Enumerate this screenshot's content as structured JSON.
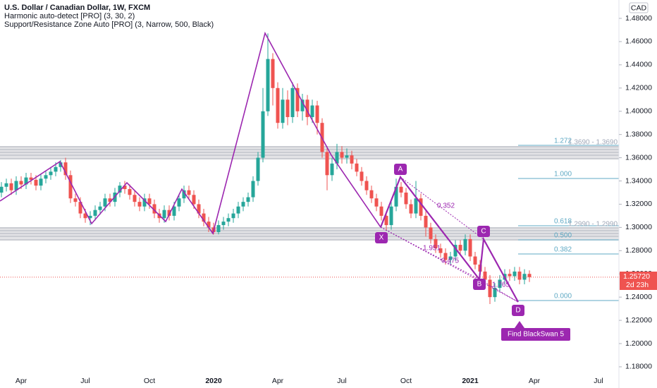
{
  "chart_data": {
    "type": "candlestick",
    "title": "U.S. Dollar / Canadian Dollar, 1W, FXCM",
    "indicators": [
      "Harmonic auto-detect [PRO] (3, 30, 2)",
      "Support/Resistance Zone Auto [PRO] (3, Narrow, 500, Black)"
    ],
    "currency": "CAD",
    "last_price_label": "1.25720",
    "countdown": "2d 23h",
    "pattern_points": [
      "X",
      "A",
      "B",
      "C",
      "D"
    ],
    "pattern_ratios": [
      "0.352",
      "1.951",
      "0.475",
      "1.765"
    ],
    "fib_levels": [
      "1.272",
      "1.000",
      "0.618",
      "0.500",
      "0.382",
      "0.000"
    ],
    "zone_labels": [
      "1.3690 - 1.3690",
      "1.2990 - 1.2990"
    ],
    "button": "Find BlackSwan 5",
    "up_color": "#26a69a",
    "down_color": "#ef5350",
    "grid": false,
    "ylim": [
      1.1739,
      1.4958
    ],
    "yticks": [
      {
        "value": 1.18,
        "label": "1.18000"
      },
      {
        "value": 1.2,
        "label": "1.20000"
      },
      {
        "value": 1.22,
        "label": "1.22000"
      },
      {
        "value": 1.24,
        "label": "1.24000"
      },
      {
        "value": 1.26,
        "label": "1.26000"
      },
      {
        "value": 1.28,
        "label": "1.28000"
      },
      {
        "value": 1.3,
        "label": "1.30000"
      },
      {
        "value": 1.32,
        "label": "1.32000"
      },
      {
        "value": 1.34,
        "label": "1.34000"
      },
      {
        "value": 1.36,
        "label": "1.36000"
      },
      {
        "value": 1.38,
        "label": "1.38000"
      },
      {
        "value": 1.4,
        "label": "1.40000"
      },
      {
        "value": 1.42,
        "label": "1.42000"
      },
      {
        "value": 1.44,
        "label": "1.44000"
      },
      {
        "value": 1.46,
        "label": "1.46000"
      },
      {
        "value": 1.48,
        "label": "1.48000"
      }
    ],
    "categories": [
      null,
      null,
      null,
      null,
      "Apr",
      null,
      null,
      null,
      null,
      null,
      null,
      null,
      null,
      null,
      null,
      null,
      null,
      "Jul",
      null,
      null,
      null,
      null,
      null,
      null,
      null,
      null,
      null,
      null,
      null,
      null,
      "Oct",
      null,
      null,
      null,
      null,
      null,
      null,
      null,
      null,
      null,
      null,
      null,
      null,
      "2020",
      null,
      null,
      null,
      null,
      null,
      null,
      null,
      null,
      null,
      null,
      null,
      null,
      "Apr",
      null,
      null,
      null,
      null,
      null,
      null,
      null,
      null,
      null,
      null,
      null,
      null,
      "Jul",
      null,
      null,
      null,
      null,
      null,
      null,
      null,
      null,
      null,
      null,
      null,
      null,
      "Oct",
      null,
      null,
      null,
      null,
      null,
      null,
      null,
      null,
      null,
      null,
      null,
      null,
      "2021",
      null,
      null,
      null,
      null,
      null,
      null,
      null,
      null,
      null,
      null,
      null,
      null,
      "Apr",
      null,
      null,
      null,
      null,
      null,
      null,
      null,
      null,
      null,
      null,
      null,
      null,
      "Jul",
      null
    ],
    "open": [
      1.33,
      1.335,
      1.338,
      1.332,
      1.34,
      1.337,
      1.343,
      1.341,
      1.336,
      1.342,
      1.345,
      1.348,
      1.352,
      1.356,
      1.345,
      1.325,
      1.322,
      1.312,
      1.308,
      1.31,
      1.315,
      1.318,
      1.325,
      1.322,
      1.33,
      1.336,
      1.333,
      1.328,
      1.322,
      1.318,
      1.325,
      1.32,
      1.312,
      1.308,
      1.315,
      1.31,
      1.318,
      1.325,
      1.332,
      1.328,
      1.32,
      1.312,
      1.305,
      1.3,
      1.296,
      1.302,
      1.305,
      1.308,
      1.312,
      1.318,
      1.322,
      1.326,
      1.34,
      1.36,
      1.4,
      1.445,
      1.42,
      1.39,
      1.41,
      1.395,
      1.42,
      1.4,
      1.41,
      1.395,
      1.405,
      1.39,
      1.365,
      1.345,
      1.355,
      1.365,
      1.36,
      1.362,
      1.355,
      1.348,
      1.34,
      1.332,
      1.325,
      1.318,
      1.31,
      1.302,
      1.318,
      1.335,
      1.33,
      1.32,
      1.312,
      1.325,
      1.31,
      1.3,
      1.29,
      1.282,
      1.278,
      1.272,
      1.275,
      1.285,
      1.28,
      1.29,
      1.275,
      1.268,
      1.262,
      1.255,
      1.24,
      1.248,
      1.255,
      1.26,
      1.258,
      1.262,
      1.255,
      1.26,
      null,
      null,
      null,
      null,
      null,
      null,
      null,
      null,
      null,
      null,
      null,
      null,
      null,
      null,
      null
    ],
    "high": [
      1.339,
      1.342,
      1.342,
      1.344,
      1.344,
      1.347,
      1.347,
      1.345,
      1.346,
      1.349,
      1.352,
      1.356,
      1.358,
      1.36,
      1.349,
      1.329,
      1.326,
      1.316,
      1.314,
      1.319,
      1.322,
      1.329,
      1.329,
      1.334,
      1.339,
      1.34,
      1.337,
      1.332,
      1.326,
      1.329,
      1.329,
      1.324,
      1.316,
      1.319,
      1.319,
      1.322,
      1.329,
      1.336,
      1.336,
      1.332,
      1.324,
      1.316,
      1.309,
      1.304,
      1.306,
      1.309,
      1.312,
      1.316,
      1.322,
      1.326,
      1.33,
      1.344,
      1.365,
      1.42,
      1.467,
      1.45,
      1.425,
      1.42,
      1.418,
      1.425,
      1.424,
      1.415,
      1.414,
      1.41,
      1.409,
      1.394,
      1.37,
      1.36,
      1.372,
      1.37,
      1.368,
      1.366,
      1.359,
      1.352,
      1.344,
      1.336,
      1.329,
      1.322,
      1.314,
      1.322,
      1.342,
      1.339,
      1.334,
      1.324,
      1.34,
      1.329,
      1.314,
      1.304,
      1.294,
      1.286,
      1.282,
      1.279,
      1.289,
      1.289,
      1.294,
      1.294,
      1.279,
      1.272,
      1.266,
      1.259,
      1.252,
      1.259,
      1.264,
      1.264,
      1.266,
      1.266,
      1.264,
      1.263,
      null,
      null,
      null,
      null,
      null,
      null,
      null,
      null,
      null,
      null,
      null,
      null,
      null,
      null,
      null
    ],
    "low": [
      1.326,
      1.331,
      1.328,
      1.328,
      1.333,
      1.333,
      1.337,
      1.332,
      1.332,
      1.338,
      1.341,
      1.344,
      1.348,
      1.341,
      1.321,
      1.318,
      1.308,
      1.304,
      1.302,
      1.306,
      1.311,
      1.314,
      1.318,
      1.318,
      1.326,
      1.329,
      1.324,
      1.318,
      1.314,
      1.314,
      1.316,
      1.308,
      1.304,
      1.304,
      1.306,
      1.306,
      1.314,
      1.321,
      1.324,
      1.316,
      1.308,
      1.301,
      1.296,
      1.294,
      1.294,
      1.298,
      1.301,
      1.304,
      1.308,
      1.314,
      1.318,
      1.322,
      1.336,
      1.356,
      1.396,
      1.405,
      1.385,
      1.385,
      1.388,
      1.39,
      1.395,
      1.392,
      1.388,
      1.39,
      1.38,
      1.36,
      1.332,
      1.34,
      1.35,
      1.355,
      1.355,
      1.35,
      1.344,
      1.336,
      1.328,
      1.321,
      1.314,
      1.306,
      1.298,
      1.298,
      1.314,
      1.326,
      1.316,
      1.308,
      1.308,
      1.306,
      1.292,
      1.286,
      1.278,
      1.274,
      1.268,
      1.268,
      1.271,
      1.276,
      1.276,
      1.271,
      1.264,
      1.258,
      1.251,
      1.234,
      1.236,
      1.244,
      1.251,
      1.254,
      1.254,
      1.251,
      1.251,
      1.253,
      null,
      null,
      null,
      null,
      null,
      null,
      null,
      null,
      null,
      null,
      null,
      null,
      null,
      null,
      null
    ],
    "close": [
      1.335,
      1.338,
      1.332,
      1.34,
      1.337,
      1.343,
      1.341,
      1.336,
      1.342,
      1.345,
      1.348,
      1.352,
      1.356,
      1.345,
      1.325,
      1.322,
      1.312,
      1.308,
      1.31,
      1.315,
      1.318,
      1.325,
      1.322,
      1.33,
      1.336,
      1.333,
      1.328,
      1.322,
      1.318,
      1.325,
      1.32,
      1.312,
      1.308,
      1.315,
      1.31,
      1.318,
      1.325,
      1.332,
      1.328,
      1.32,
      1.312,
      1.305,
      1.3,
      1.296,
      1.302,
      1.305,
      1.308,
      1.312,
      1.318,
      1.322,
      1.326,
      1.34,
      1.36,
      1.4,
      1.445,
      1.42,
      1.39,
      1.41,
      1.395,
      1.42,
      1.4,
      1.41,
      1.395,
      1.405,
      1.39,
      1.365,
      1.345,
      1.355,
      1.365,
      1.36,
      1.362,
      1.355,
      1.348,
      1.34,
      1.332,
      1.325,
      1.318,
      1.31,
      1.302,
      1.318,
      1.335,
      1.33,
      1.32,
      1.312,
      1.325,
      1.31,
      1.3,
      1.29,
      1.282,
      1.278,
      1.272,
      1.275,
      1.285,
      1.28,
      1.29,
      1.275,
      1.268,
      1.262,
      1.255,
      1.24,
      1.248,
      1.255,
      1.26,
      1.258,
      1.262,
      1.255,
      1.26,
      1.2572,
      null,
      null,
      null,
      null,
      null,
      null,
      null,
      null,
      null,
      null,
      null,
      null,
      null,
      null,
      null
    ]
  }
}
